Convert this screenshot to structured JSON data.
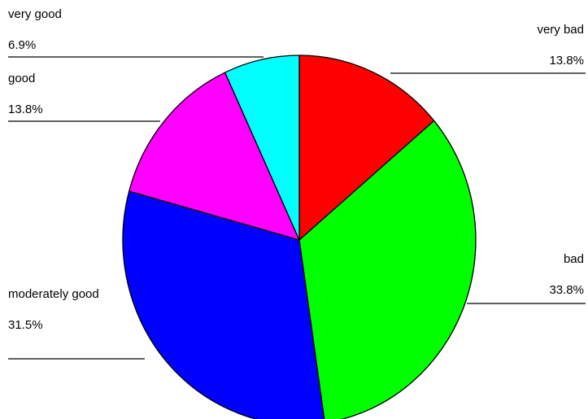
{
  "chart_data": {
    "type": "pie",
    "title": "",
    "start": "12 o'clock",
    "direction": "clockwise",
    "slices": [
      {
        "label": "very bad",
        "percent_label": "13.8%",
        "value": 13.8,
        "color": "#ff0000",
        "label_side": "right"
      },
      {
        "label": "bad",
        "percent_label": "33.8%",
        "value": 33.8,
        "color": "#00ff00",
        "label_side": "right"
      },
      {
        "label": "moderately good",
        "percent_label": "31.5%",
        "value": 31.5,
        "color": "#0000ff",
        "label_side": "left"
      },
      {
        "label": "good",
        "percent_label": "13.8%",
        "value": 13.8,
        "color": "#ff00ff",
        "label_side": "left"
      },
      {
        "label": "very good",
        "percent_label": "6.9%",
        "value": 6.9,
        "color": "#00ffff",
        "label_side": "left"
      }
    ]
  }
}
